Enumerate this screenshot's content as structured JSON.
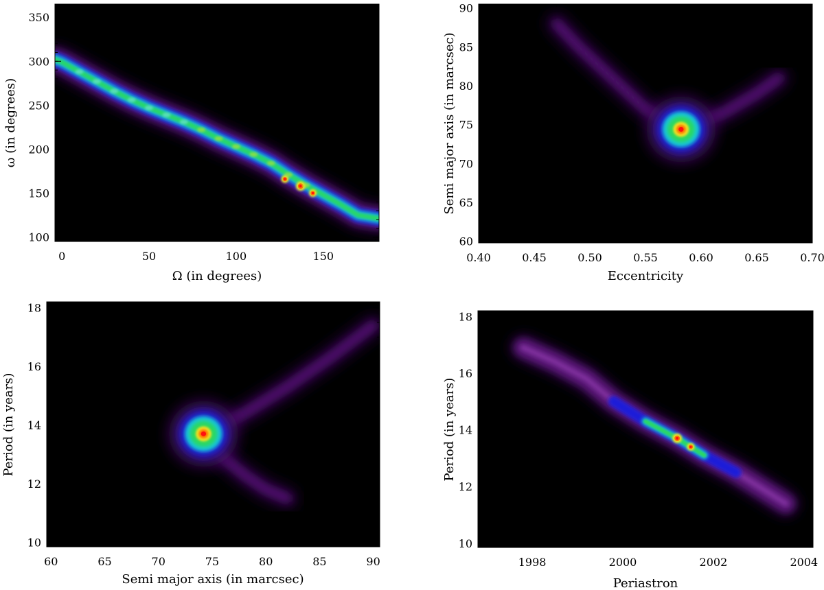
{
  "chart_data": [
    {
      "type": "heatmap",
      "xlabel": "Ω (in degrees)",
      "ylabel": "ω (in degrees)",
      "xlim": [
        -4,
        182
      ],
      "ylim": [
        95,
        365
      ],
      "xticks": [
        0,
        50,
        100,
        150
      ],
      "yticks": [
        100,
        150,
        200,
        250,
        300,
        350
      ],
      "x_minor_step": 10,
      "y_minor_step": 10,
      "colormap": "rainbow-on-black",
      "ridge": [
        [
          -4,
          302
        ],
        [
          0,
          299
        ],
        [
          10,
          288
        ],
        [
          20,
          277
        ],
        [
          30,
          266
        ],
        [
          40,
          256
        ],
        [
          50,
          247
        ],
        [
          60,
          239
        ],
        [
          70,
          231
        ],
        [
          80,
          222
        ],
        [
          90,
          212
        ],
        [
          100,
          203
        ],
        [
          110,
          194
        ],
        [
          120,
          184
        ],
        [
          130,
          171
        ],
        [
          140,
          159
        ],
        [
          150,
          148
        ],
        [
          160,
          137
        ],
        [
          170,
          125
        ],
        [
          182,
          121
        ]
      ],
      "peaks": [
        [
          137,
          158
        ],
        [
          128,
          166
        ],
        [
          144,
          150
        ]
      ]
    },
    {
      "type": "heatmap",
      "xlabel": "Eccentricity",
      "ylabel": "Semi major axis (in marcsec)",
      "xlim": [
        0.4,
        0.7
      ],
      "ylim": [
        59.8,
        90.5
      ],
      "xticks": [
        0.4,
        0.45,
        0.5,
        0.55,
        0.6,
        0.65,
        0.7
      ],
      "xtick_labels": [
        "0.40",
        "0.45",
        "0.50",
        "0.55",
        "0.60",
        "0.65",
        "0.70"
      ],
      "yticks": [
        60,
        65,
        70,
        75,
        80,
        85,
        90
      ],
      "x_minor_step": 0.01,
      "y_minor_step": 1,
      "colormap": "rainbow-on-black",
      "peak": [
        0.582,
        74.4
      ],
      "tails": [
        [
          [
            0.582,
            74.4
          ],
          [
            0.55,
            77
          ],
          [
            0.52,
            81
          ],
          [
            0.49,
            85
          ],
          [
            0.47,
            88
          ]
        ],
        [
          [
            0.582,
            74.4
          ],
          [
            0.62,
            76.5
          ],
          [
            0.65,
            79
          ],
          [
            0.67,
            81
          ]
        ]
      ]
    },
    {
      "type": "heatmap",
      "xlabel": "Semi major axis (in marcsec)",
      "ylabel": "Period (in years)",
      "xlim": [
        59.6,
        90.6
      ],
      "ylim": [
        9.85,
        18.2
      ],
      "xticks": [
        60,
        65,
        70,
        75,
        80,
        85,
        90
      ],
      "yticks": [
        10,
        12,
        14,
        16,
        18
      ],
      "x_minor_step": 1,
      "y_minor_step": 0.5,
      "colormap": "rainbow-on-black",
      "peak": [
        74.2,
        13.7
      ],
      "tails": [
        [
          [
            74.2,
            13.7
          ],
          [
            78,
            14.4
          ],
          [
            82,
            15.3
          ],
          [
            86,
            16.3
          ],
          [
            90,
            17.4
          ]
        ],
        [
          [
            74.2,
            13.7
          ],
          [
            76,
            12.9
          ],
          [
            78,
            12.3
          ],
          [
            80,
            11.8
          ],
          [
            82,
            11.5
          ]
        ]
      ]
    },
    {
      "type": "heatmap",
      "xlabel": "Periastron",
      "ylabel": "Period (in years)",
      "xlim": [
        1996.8,
        2004.2
      ],
      "ylim": [
        9.85,
        18.2
      ],
      "xticks": [
        1998,
        2000,
        2002,
        2004
      ],
      "yticks": [
        10,
        12,
        14,
        16,
        18
      ],
      "x_minor_step": 0.25,
      "y_minor_step": 0.5,
      "colormap": "rainbow-on-black",
      "ridge": [
        [
          1997.8,
          16.9
        ],
        [
          1998.5,
          16.4
        ],
        [
          1999.2,
          15.8
        ],
        [
          1999.8,
          15.0
        ],
        [
          2000.5,
          14.3
        ],
        [
          2001.2,
          13.7
        ],
        [
          2001.8,
          13.1
        ],
        [
          2002.5,
          12.5
        ],
        [
          2003.2,
          11.8
        ],
        [
          2003.6,
          11.4
        ]
      ],
      "peaks": [
        [
          2001.2,
          13.7
        ],
        [
          2001.5,
          13.4
        ]
      ]
    }
  ]
}
